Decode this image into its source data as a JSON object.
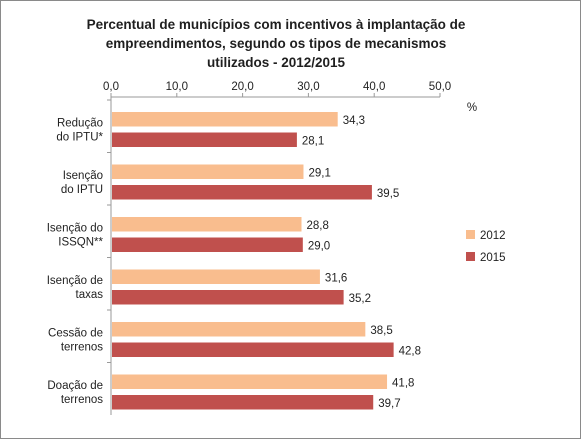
{
  "chart_data": {
    "type": "bar",
    "orientation": "horizontal",
    "title_lines": [
      "Percentual de municípios  com incentivos à implantação de",
      "empreendimentos, segundo os tipos de mecanismos",
      "utilizados - 2012/2015"
    ],
    "unit_label": "%",
    "xlim": [
      0,
      50
    ],
    "ticks": [
      "0,0",
      "10,0",
      "20,0",
      "30,0",
      "40,0",
      "50,0"
    ],
    "tick_values": [
      0,
      10,
      20,
      30,
      40,
      50
    ],
    "categories": [
      [
        "Redução",
        "do IPTU*"
      ],
      [
        "Isenção",
        "do IPTU"
      ],
      [
        "Isenção do",
        "ISSQN**"
      ],
      [
        "Isenção de",
        "taxas"
      ],
      [
        "Cessão de",
        "terrenos"
      ],
      [
        "Doação de",
        "terrenos"
      ]
    ],
    "series": [
      {
        "name": "2012",
        "color": "#f9bd8e",
        "values": [
          34.3,
          29.1,
          28.8,
          31.6,
          38.5,
          41.8
        ],
        "labels": [
          "34,3",
          "29,1",
          "28,8",
          "31,6",
          "38,5",
          "41,8"
        ]
      },
      {
        "name": "2015",
        "color": "#c0504d",
        "values": [
          28.1,
          39.5,
          29.0,
          35.2,
          42.8,
          39.7
        ],
        "labels": [
          "28,1",
          "39,5",
          "29,0",
          "35,2",
          "42,8",
          "39,7"
        ]
      }
    ],
    "grid": false,
    "legend_position": "right"
  }
}
